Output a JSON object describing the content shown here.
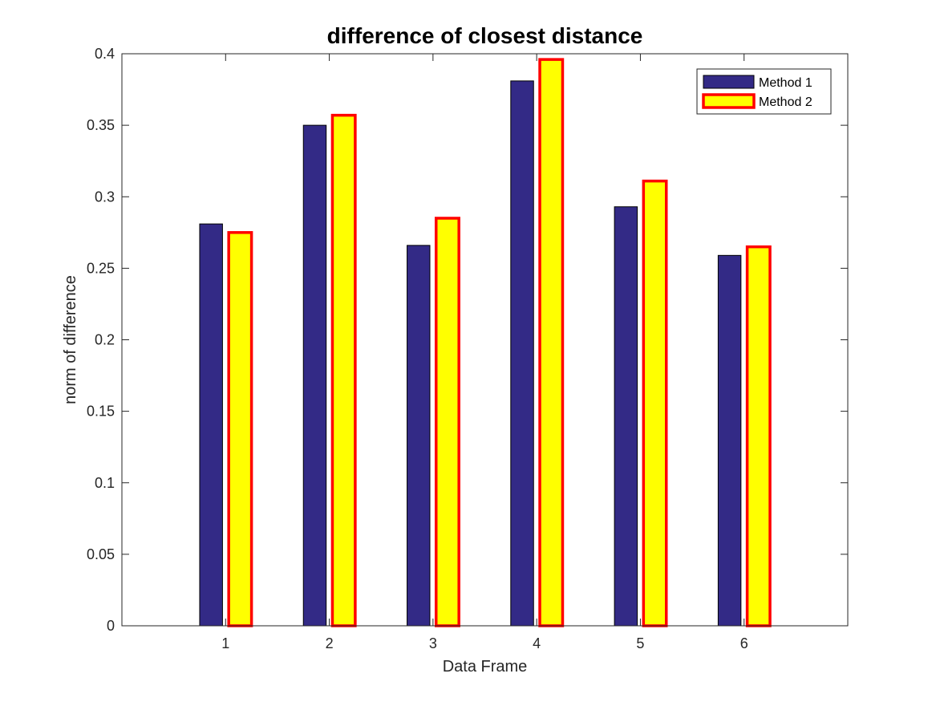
{
  "chart_data": {
    "type": "bar",
    "title": "difference of closest distance",
    "xlabel": "Data Frame",
    "ylabel": "norm of difference",
    "categories": [
      "1",
      "2",
      "3",
      "4",
      "5",
      "6"
    ],
    "xlim": [
      0,
      7
    ],
    "ylim": [
      0,
      0.4
    ],
    "yticks": [
      0,
      0.05,
      0.1,
      0.15,
      0.2,
      0.25,
      0.3,
      0.35,
      0.4
    ],
    "ytick_labels": [
      "0",
      "0.05",
      "0.1",
      "0.15",
      "0.2",
      "0.25",
      "0.3",
      "0.35",
      "0.4"
    ],
    "grid": false,
    "legend_location": "top-right",
    "series": [
      {
        "name": "Method 1",
        "values": [
          0.281,
          0.35,
          0.266,
          0.381,
          0.293,
          0.259
        ],
        "fill": "#332a86",
        "edge": "#000000"
      },
      {
        "name": "Method 2",
        "values": [
          0.275,
          0.357,
          0.285,
          0.396,
          0.311,
          0.265
        ],
        "fill": "#ffff00",
        "edge": "#ff0000"
      }
    ]
  }
}
